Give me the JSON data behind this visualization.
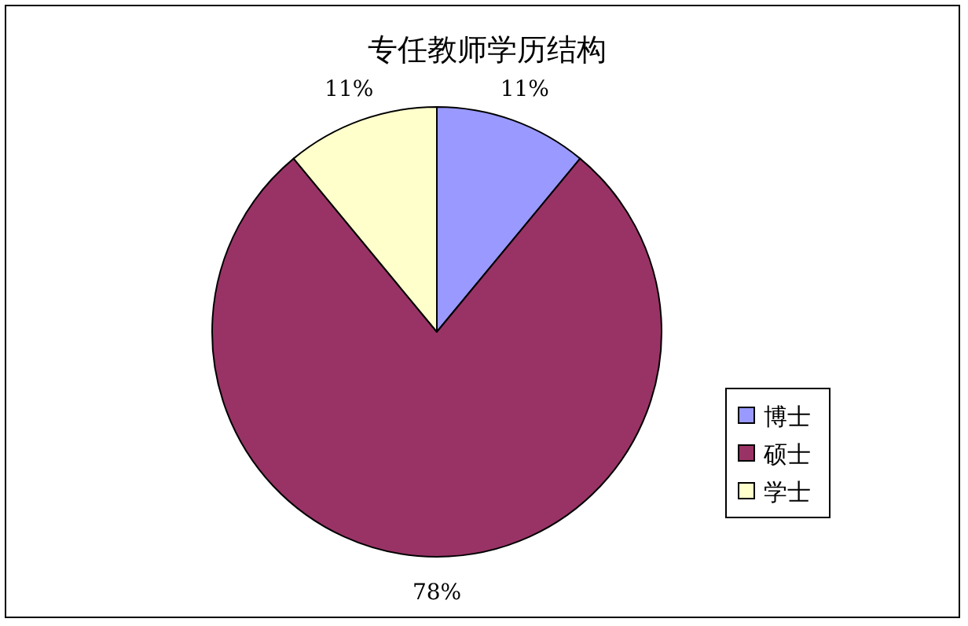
{
  "chart_data": {
    "type": "pie",
    "title": "专任教师学历结构",
    "categories": [
      "博士",
      "硕士",
      "学士"
    ],
    "values": [
      11,
      78,
      11
    ],
    "colors": [
      "#9999ff",
      "#993366",
      "#ffffcc"
    ],
    "value_labels": [
      "11%",
      "78%",
      "11%"
    ],
    "legend": "right"
  }
}
